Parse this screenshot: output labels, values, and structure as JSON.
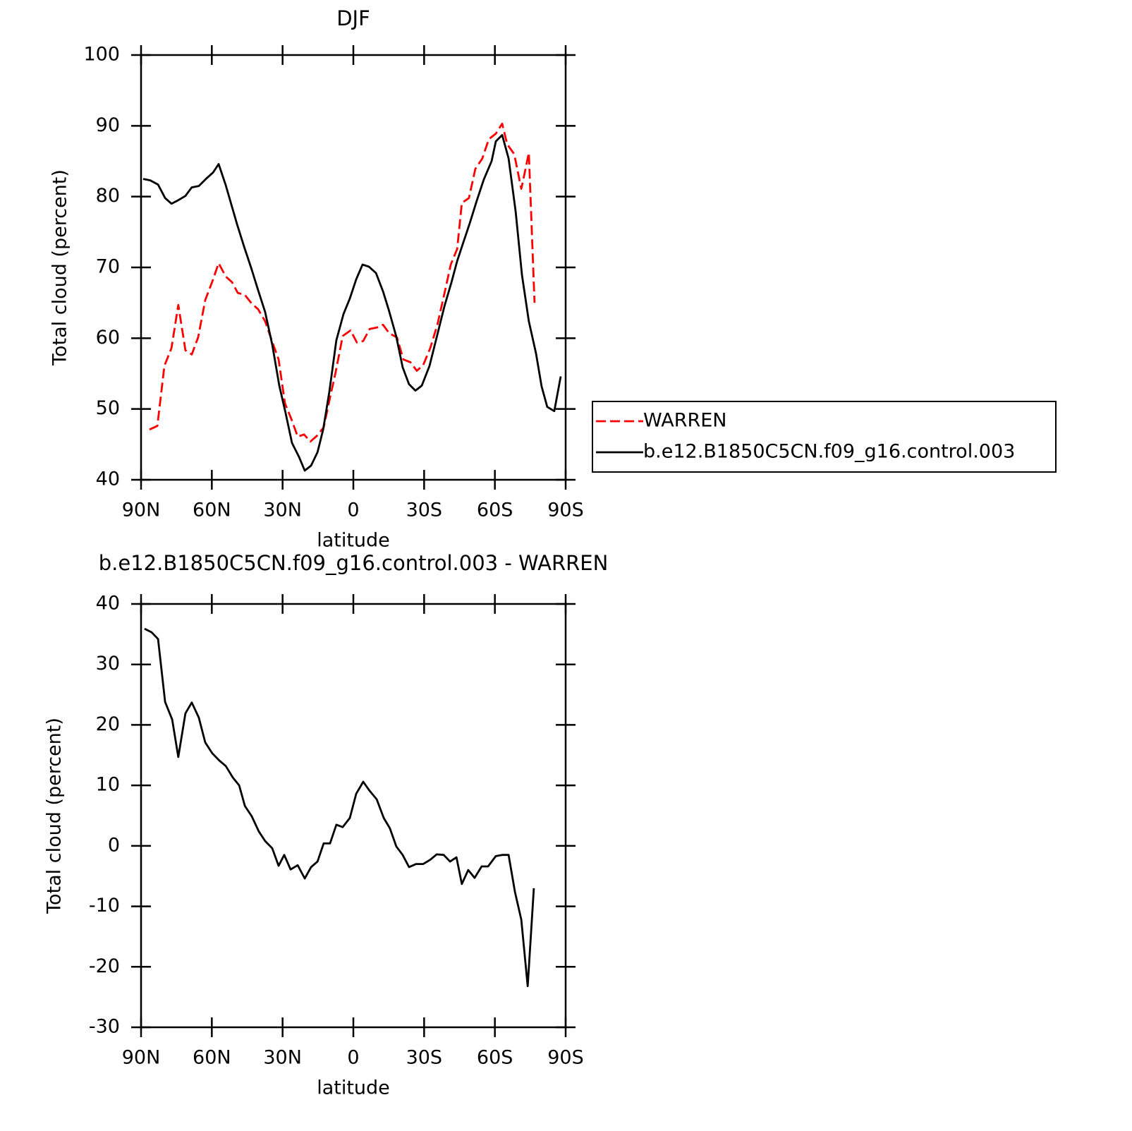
{
  "chart_data": [
    {
      "type": "line",
      "title": "DJF",
      "xlabel": "latitude",
      "ylabel": "Total cloud (percent)",
      "xlim": [
        90,
        -90
      ],
      "xticks": [
        {
          "value": 90,
          "label": "90N"
        },
        {
          "value": 60,
          "label": "60N"
        },
        {
          "value": 30,
          "label": "30N"
        },
        0,
        {
          "value": -30,
          "label": "30S"
        },
        {
          "value": -60,
          "label": "60S"
        },
        {
          "value": -90,
          "label": "90S"
        }
      ],
      "ylim": [
        40,
        100
      ],
      "yticks": [
        40,
        50,
        60,
        70,
        80,
        90,
        100
      ],
      "legend": "right",
      "series": [
        {
          "name": "WARREN",
          "color": "#ff0000",
          "dashed": true,
          "x": [
            86.4,
            83.1,
            80.1,
            77.1,
            74.2,
            71.2,
            68.5,
            65.8,
            62.8,
            59.8,
            57.1,
            54.1,
            51.4,
            49.0,
            46.0,
            43.1,
            40.4,
            37.4,
            34.4,
            31.7,
            29.0,
            26.3,
            23.6,
            20.9,
            18.2,
            15.5,
            12.6,
            9.9,
            7.5,
            4.5,
            1.2,
            -1.5,
            -4.2,
            -6.9,
            -9.9,
            -12.6,
            -15.2,
            -18.5,
            -21.2,
            -24.2,
            -26.9,
            -29.6,
            -32.6,
            -35.6,
            -38.6,
            -41.3,
            -44.0,
            -46.0,
            -49.0,
            -51.7,
            -54.7,
            -57.4,
            -60.4,
            -63.1,
            -65.2,
            -68.2,
            -71.2,
            -73.0,
            -74.4,
            -76.8
          ],
          "values": [
            47.1,
            47.6,
            56.1,
            58.6,
            64.7,
            58.3,
            57.7,
            60.1,
            65.4,
            68.0,
            70.6,
            68.7,
            67.9,
            66.4,
            66.1,
            64.9,
            64.1,
            62.4,
            59.5,
            57.0,
            50.8,
            48.6,
            46.1,
            46.4,
            45.4,
            46.2,
            47.4,
            51.6,
            55.2,
            60.3,
            61.1,
            59.4,
            59.6,
            61.3,
            61.5,
            61.9,
            60.7,
            60.1,
            57.0,
            56.6,
            55.4,
            56.2,
            58.6,
            61.9,
            66.3,
            70.4,
            72.6,
            79.1,
            79.8,
            83.9,
            85.4,
            88.1,
            88.9,
            90.3,
            87.4,
            86.0,
            81.1,
            83.9,
            86.2,
            65.0
          ]
        },
        {
          "name": "b.e12.B1850C5CN.f09_g16.control.003",
          "color": "#000000",
          "dashed": false,
          "x": [
            89.1,
            86.1,
            82.8,
            79.8,
            77.1,
            74.2,
            71.2,
            68.5,
            65.5,
            62.5,
            59.5,
            57.1,
            54.1,
            49.3,
            46.3,
            43.4,
            40.4,
            37.4,
            34.4,
            31.4,
            28.7,
            26.0,
            23.0,
            20.6,
            17.9,
            15.2,
            12.8,
            10.2,
            7.2,
            4.2,
            1.5,
            -1.2,
            -3.9,
            -6.6,
            -9.6,
            -12.6,
            -15.2,
            -18.2,
            -20.9,
            -23.6,
            -26.3,
            -29.0,
            -32.3,
            -35.6,
            -38.6,
            -41.6,
            -44.0,
            -46.3,
            -49.3,
            -52.3,
            -55.3,
            -58.6,
            -60.4,
            -63.1,
            -65.8,
            -68.8,
            -71.5,
            -74.4,
            -77.4,
            -79.8,
            -82.2,
            -85.2,
            -87.9
          ],
          "values": [
            82.5,
            82.3,
            81.7,
            79.8,
            79.0,
            79.5,
            80.1,
            81.3,
            81.5,
            82.5,
            83.4,
            84.6,
            81.6,
            76.1,
            72.9,
            70.0,
            66.8,
            63.7,
            59.1,
            53.3,
            49.4,
            45.2,
            43.2,
            41.3,
            42.0,
            43.9,
            47.1,
            52.4,
            59.7,
            63.4,
            65.6,
            68.3,
            70.4,
            70.1,
            69.2,
            66.6,
            63.8,
            60.2,
            55.9,
            53.5,
            52.6,
            53.3,
            56.1,
            60.5,
            64.5,
            67.9,
            70.9,
            73.2,
            76.2,
            79.4,
            82.4,
            85.0,
            87.8,
            88.7,
            85.4,
            77.9,
            68.9,
            62.4,
            57.9,
            53.2,
            50.3,
            49.7,
            54.6
          ]
        }
      ]
    },
    {
      "type": "line",
      "title": "b.e12.B1850C5CN.f09_g16.control.003 - WARREN",
      "xlabel": "latitude",
      "ylabel": "Total cloud (percent)",
      "xlim": [
        90,
        -90
      ],
      "xticks": [
        {
          "value": 90,
          "label": "90N"
        },
        {
          "value": 60,
          "label": "60N"
        },
        {
          "value": 30,
          "label": "30N"
        },
        0,
        {
          "value": -30,
          "label": "30S"
        },
        {
          "value": -60,
          "label": "60S"
        },
        {
          "value": -90,
          "label": "90S"
        }
      ],
      "ylim": [
        -30,
        40
      ],
      "yticks": [
        -30,
        -20,
        -10,
        0,
        10,
        20,
        30,
        40
      ],
      "series": [
        {
          "color": "#000000",
          "dashed": false,
          "x": [
            88.5,
            85.5,
            82.8,
            79.8,
            76.8,
            74.2,
            71.2,
            68.5,
            65.5,
            62.8,
            59.8,
            56.8,
            54.1,
            51.1,
            48.4,
            46.0,
            43.1,
            40.1,
            37.4,
            34.4,
            31.7,
            29.3,
            26.6,
            23.6,
            20.6,
            17.9,
            15.2,
            12.6,
            9.9,
            7.2,
            4.5,
            1.5,
            -1.2,
            -4.2,
            -6.9,
            -9.9,
            -12.9,
            -15.5,
            -18.2,
            -20.9,
            -23.6,
            -26.6,
            -29.6,
            -32.6,
            -35.3,
            -38.3,
            -41.0,
            -43.7,
            -46.0,
            -48.7,
            -51.4,
            -54.4,
            -57.1,
            -60.4,
            -63.1,
            -65.8,
            -68.5,
            -71.2,
            -73.9,
            -76.5
          ],
          "values": [
            35.9,
            35.3,
            34.2,
            23.8,
            20.9,
            14.7,
            21.9,
            23.7,
            21.2,
            17.1,
            15.3,
            14.1,
            13.2,
            11.3,
            10.0,
            6.6,
            4.9,
            2.4,
            0.8,
            -0.4,
            -3.3,
            -1.5,
            -3.9,
            -3.2,
            -5.4,
            -3.5,
            -2.6,
            0.4,
            0.4,
            3.5,
            3.1,
            4.6,
            8.6,
            10.6,
            9.1,
            7.7,
            4.6,
            2.9,
            -0.1,
            -1.5,
            -3.5,
            -3.0,
            -3.0,
            -2.3,
            -1.4,
            -1.5,
            -2.6,
            -1.9,
            -6.3,
            -4.0,
            -5.3,
            -3.4,
            -3.4,
            -1.7,
            -1.5,
            -1.5,
            -7.6,
            -12.2,
            -23.2,
            -7.0
          ]
        }
      ]
    }
  ]
}
